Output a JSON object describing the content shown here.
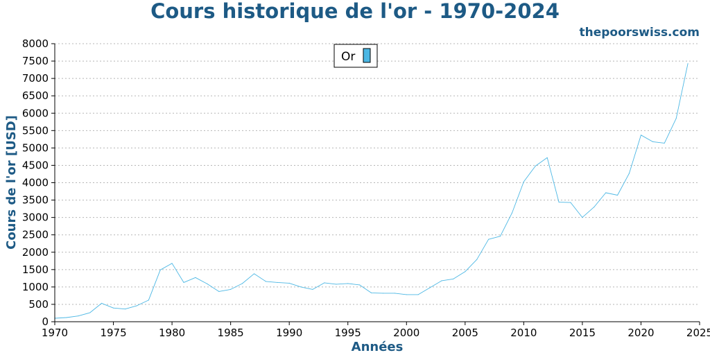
{
  "header": {
    "title": "Cours historique de l'or - 1970-2024",
    "watermark": "thepoorswiss.com"
  },
  "colors": {
    "series": "#4bb7e4",
    "text_accent": "#1d5a85",
    "grid": "#b5b5b5"
  },
  "chart_data": {
    "type": "line",
    "title": "Cours historique de l'or - 1970-2024",
    "xlabel": "Années",
    "ylabel": "Cours de l'or [USD]",
    "xlim": [
      1970,
      2025
    ],
    "ylim": [
      0,
      8000
    ],
    "x_ticks": [
      1970,
      1975,
      1980,
      1985,
      1990,
      1995,
      2000,
      2005,
      2010,
      2015,
      2020,
      2025
    ],
    "y_ticks": [
      0,
      500,
      1000,
      1500,
      2000,
      2500,
      3000,
      3500,
      4000,
      4500,
      5000,
      5500,
      6000,
      6500,
      7000,
      7500,
      8000
    ],
    "grid": "horizontal dotted",
    "legend_position": "top-center",
    "series": [
      {
        "name": "Or",
        "color": "#4bb7e4",
        "x": [
          1970,
          1971,
          1972,
          1973,
          1974,
          1975,
          1976,
          1977,
          1978,
          1979,
          1980,
          1981,
          1982,
          1983,
          1984,
          1985,
          1986,
          1987,
          1988,
          1989,
          1990,
          1991,
          1992,
          1993,
          1994,
          1995,
          1996,
          1997,
          1998,
          1999,
          2000,
          2001,
          2002,
          2003,
          2004,
          2005,
          2006,
          2007,
          2008,
          2009,
          2010,
          2011,
          2012,
          2013,
          2014,
          2015,
          2016,
          2017,
          2018,
          2019,
          2020,
          2021,
          2022,
          2023,
          2024
        ],
        "values": [
          100,
          120,
          165,
          260,
          530,
          395,
          365,
          460,
          620,
          1490,
          1680,
          1130,
          1270,
          1090,
          870,
          930,
          1100,
          1380,
          1160,
          1130,
          1110,
          1000,
          930,
          1120,
          1080,
          1100,
          1060,
          830,
          820,
          820,
          780,
          780,
          980,
          1180,
          1230,
          1440,
          1790,
          2370,
          2460,
          3130,
          4030,
          4480,
          4720,
          3440,
          3430,
          3000,
          3300,
          3710,
          3640,
          4270,
          5370,
          5180,
          5140,
          5850,
          7430
        ]
      }
    ]
  }
}
